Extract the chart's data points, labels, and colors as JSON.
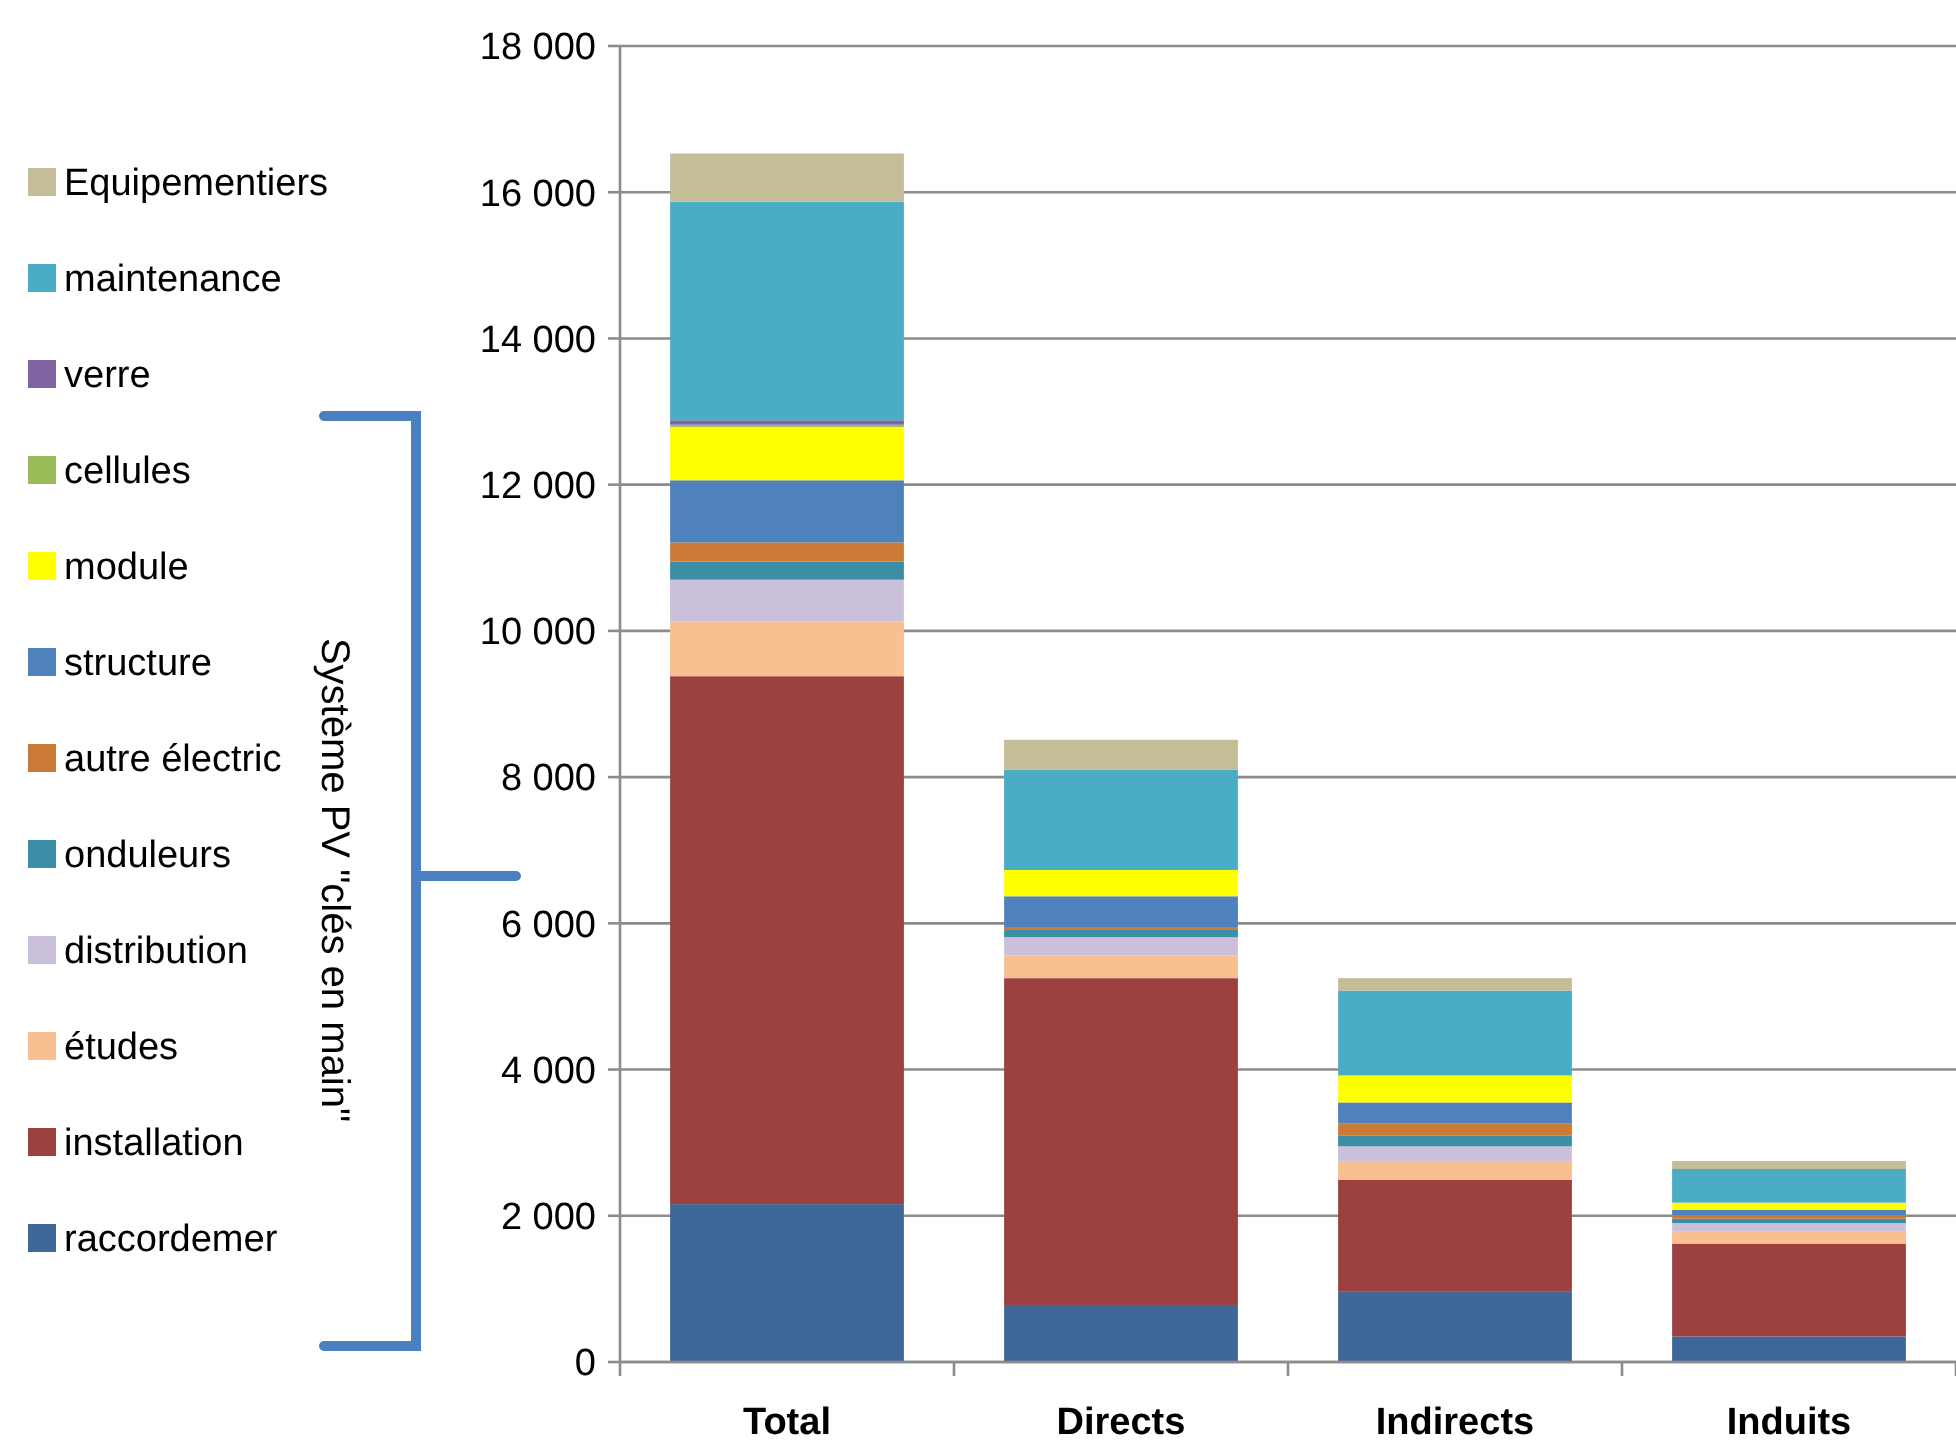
{
  "chart_data": {
    "type": "bar",
    "stacked": true,
    "categories": [
      "Total",
      "Directs",
      "Indirects",
      "Induits"
    ],
    "series": [
      {
        "name": "raccordemer",
        "color": "#3f6899",
        "values": [
          2160,
          780,
          960,
          350
        ]
      },
      {
        "name": "installation",
        "color": "#9c4040",
        "values": [
          7220,
          4470,
          1530,
          1270
        ]
      },
      {
        "name": "études",
        "color": "#f8bf90",
        "values": [
          750,
          310,
          260,
          160
        ]
      },
      {
        "name": "distribution",
        "color": "#cbc0db",
        "values": [
          570,
          250,
          200,
          120
        ]
      },
      {
        "name": "onduleurs",
        "color": "#3b8ea5",
        "values": [
          250,
          100,
          150,
          60
        ]
      },
      {
        "name": "autre électric",
        "color": "#cc7a36",
        "values": [
          260,
          40,
          160,
          50
        ]
      },
      {
        "name": "structure",
        "color": "#4f81bd",
        "values": [
          850,
          420,
          290,
          70
        ]
      },
      {
        "name": "module",
        "color": "#ffff00",
        "values": [
          730,
          360,
          370,
          100
        ]
      },
      {
        "name": "cellules",
        "color": "#9bbb59",
        "values": [
          30,
          0,
          0,
          0
        ]
      },
      {
        "name": "verre",
        "color": "#8064a2",
        "values": [
          60,
          0,
          0,
          0
        ]
      },
      {
        "name": "maintenance",
        "color": "#4bacc6",
        "values": [
          2990,
          1370,
          1160,
          460
        ]
      },
      {
        "name": "Equipementiers",
        "color": "#c4bd97",
        "values": [
          660,
          410,
          170,
          110
        ]
      }
    ],
    "ylim": [
      0,
      18000
    ],
    "yticks": [
      {
        "value": 0,
        "label": "0"
      },
      {
        "value": 2000,
        "label": "2 000"
      },
      {
        "value": 4000,
        "label": "4 000"
      },
      {
        "value": 6000,
        "label": "6 000"
      },
      {
        "value": 8000,
        "label": "8 000"
      },
      {
        "value": 10000,
        "label": "10 000"
      },
      {
        "value": 12000,
        "label": "12 000"
      },
      {
        "value": 14000,
        "label": "14 000"
      },
      {
        "value": 16000,
        "label": "16 000"
      },
      {
        "value": 18000,
        "label": "18 000"
      }
    ],
    "grid": "y",
    "legend": "left",
    "annotations": [
      "Système PV \"clés en main\""
    ]
  }
}
